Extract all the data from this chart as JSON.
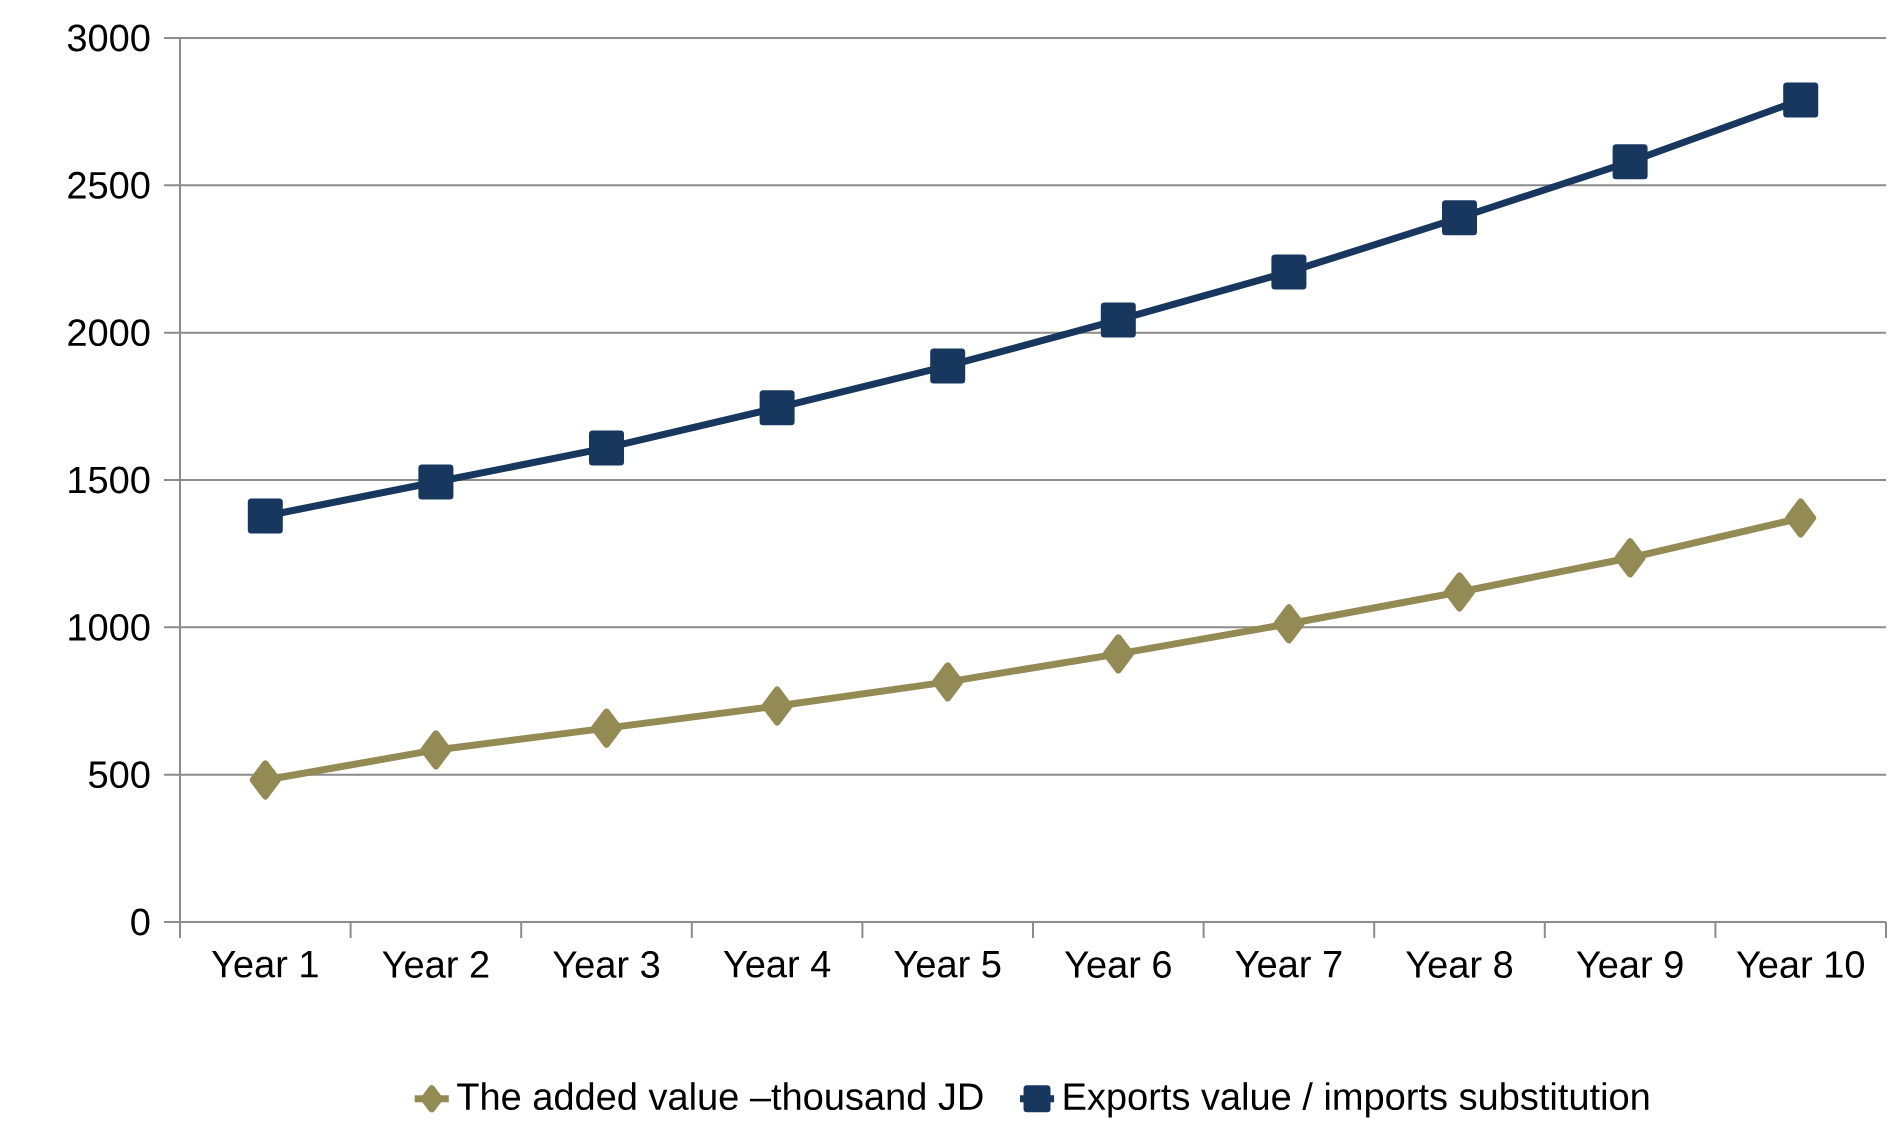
{
  "chart_data": {
    "type": "line",
    "categories": [
      "Year 1",
      "Year 2",
      "Year 3",
      "Year 4",
      "Year 5",
      "Year 6",
      "Year 7",
      "Year 8",
      "Year 9",
      "Year 10"
    ],
    "series": [
      {
        "name": "The added value –thousand JD",
        "color": "#948a54",
        "marker": "diamond",
        "values": [
          482,
          584,
          658,
          733,
          815,
          910,
          1012,
          1120,
          1236,
          1371
        ]
      },
      {
        "name": "Exports value / imports substitution",
        "color": "#17375e",
        "marker": "square",
        "values": [
          1378,
          1493,
          1609,
          1745,
          1887,
          2043,
          2206,
          2390,
          2580,
          2790
        ]
      }
    ],
    "ylim": [
      0,
      3000
    ],
    "yticks": [
      0,
      500,
      1000,
      1500,
      2000,
      2500,
      3000
    ],
    "grid": "y",
    "legend": "bottom"
  }
}
